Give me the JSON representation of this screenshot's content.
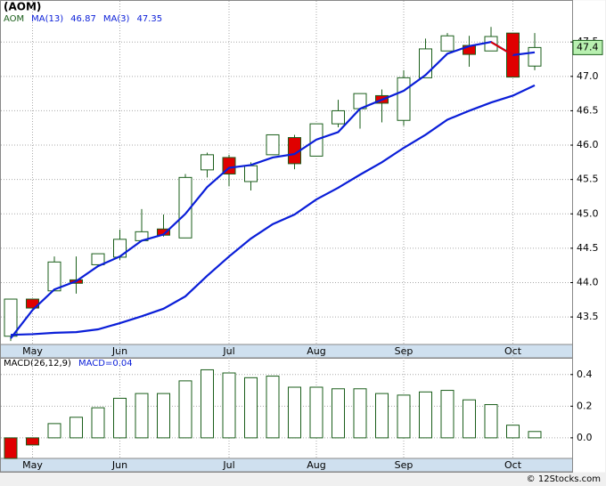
{
  "chart_data": [
    {
      "type": "candlestick",
      "title": "(AOM)",
      "legend_symbol": "AOM",
      "categories": [
        null,
        "May",
        null,
        null,
        null,
        "Jun",
        null,
        null,
        null,
        null,
        "Jul",
        null,
        null,
        null,
        "Aug",
        null,
        null,
        null,
        "Sep",
        null,
        null,
        null,
        null,
        "Oct",
        null
      ],
      "open": [
        43.22,
        43.76,
        43.88,
        44.04,
        44.26,
        44.37,
        44.61,
        44.78,
        44.65,
        45.64,
        45.82,
        45.47,
        45.86,
        46.11,
        45.84,
        46.31,
        46.53,
        46.72,
        46.36,
        46.98,
        47.37,
        47.45,
        47.37,
        47.63,
        47.15
      ],
      "high": [
        43.76,
        43.76,
        44.38,
        44.38,
        44.42,
        44.77,
        45.07,
        44.99,
        45.58,
        45.89,
        45.86,
        45.75,
        46.15,
        46.15,
        46.31,
        46.66,
        46.75,
        46.81,
        47.09,
        47.55,
        47.63,
        47.59,
        47.72,
        47.63,
        47.63
      ],
      "low": [
        43.15,
        43.63,
        43.88,
        43.84,
        44.26,
        44.33,
        44.61,
        44.67,
        44.65,
        45.53,
        45.4,
        45.34,
        45.86,
        45.65,
        45.84,
        46.26,
        46.24,
        46.33,
        46.28,
        46.98,
        47.37,
        47.14,
        47.37,
        46.99,
        47.09
      ],
      "close": [
        43.76,
        43.63,
        44.3,
        43.99,
        44.42,
        44.63,
        44.74,
        44.69,
        45.53,
        45.86,
        45.58,
        45.7,
        46.15,
        45.73,
        46.31,
        46.5,
        46.75,
        46.61,
        46.98,
        47.4,
        47.59,
        47.32,
        47.58,
        46.99,
        47.42
      ],
      "last_close_label": "47.4",
      "up_color": "#ffffff",
      "down_color": "#e00000",
      "edge_color": "#1a5e1a",
      "series": [
        {
          "name": "MA(13)",
          "last": 46.87,
          "color": "#0a1ed8",
          "values": [
            43.24,
            43.25,
            43.27,
            43.28,
            43.32,
            43.41,
            43.51,
            43.62,
            43.8,
            44.1,
            44.38,
            44.64,
            44.85,
            44.99,
            45.21,
            45.38,
            45.57,
            45.75,
            45.96,
            46.15,
            46.37,
            46.5,
            46.62,
            46.72,
            46.87
          ]
        },
        {
          "name": "MA(3)",
          "last": 47.35,
          "color": "#0a1ed8",
          "down_color": "#e00000",
          "values": [
            43.19,
            43.6,
            43.9,
            44.02,
            44.24,
            44.38,
            44.61,
            44.7,
            45.0,
            45.39,
            45.67,
            45.71,
            45.82,
            45.87,
            46.08,
            46.19,
            46.53,
            46.66,
            46.79,
            47.02,
            47.33,
            47.44,
            47.5,
            47.31,
            47.35
          ]
        }
      ],
      "ylim": [
        43.1,
        47.93
      ],
      "yticks": [
        43.5,
        {
          "value": 44,
          "label": "44.0"
        },
        44.5,
        {
          "value": 45,
          "label": "45.0"
        },
        45.5,
        {
          "value": 46,
          "label": "46.0"
        },
        46.5,
        {
          "value": 47,
          "label": "47.0"
        },
        47.5
      ],
      "grid": true
    },
    {
      "type": "bar",
      "title": "MACD(26,12,9)",
      "value_name": "MACD=",
      "last": 0.04,
      "categories": [
        null,
        "May",
        null,
        null,
        null,
        "Jun",
        null,
        null,
        null,
        null,
        "Jul",
        null,
        null,
        null,
        "Aug",
        null,
        null,
        null,
        "Sep",
        null,
        null,
        null,
        null,
        "Oct",
        null
      ],
      "values": [
        -0.13,
        -0.045,
        0.09,
        0.13,
        0.19,
        0.25,
        0.28,
        0.28,
        0.36,
        0.43,
        0.41,
        0.38,
        0.39,
        0.32,
        0.32,
        0.31,
        0.31,
        0.28,
        0.27,
        0.29,
        0.3,
        0.24,
        0.21,
        0.08,
        0.04
      ],
      "color": "#ffffff",
      "negative_color": "#e00000",
      "edge_color": "#1a5e1a",
      "legend_color": "#0a1ed8",
      "ylim": [
        -0.13,
        0.5
      ],
      "yticks": [
        {
          "value": 0,
          "label": "0.0"
        },
        0.2,
        0.4
      ],
      "grid": true
    },
    {
      "type": "footer",
      "text": "© 12Stocks.com"
    }
  ]
}
